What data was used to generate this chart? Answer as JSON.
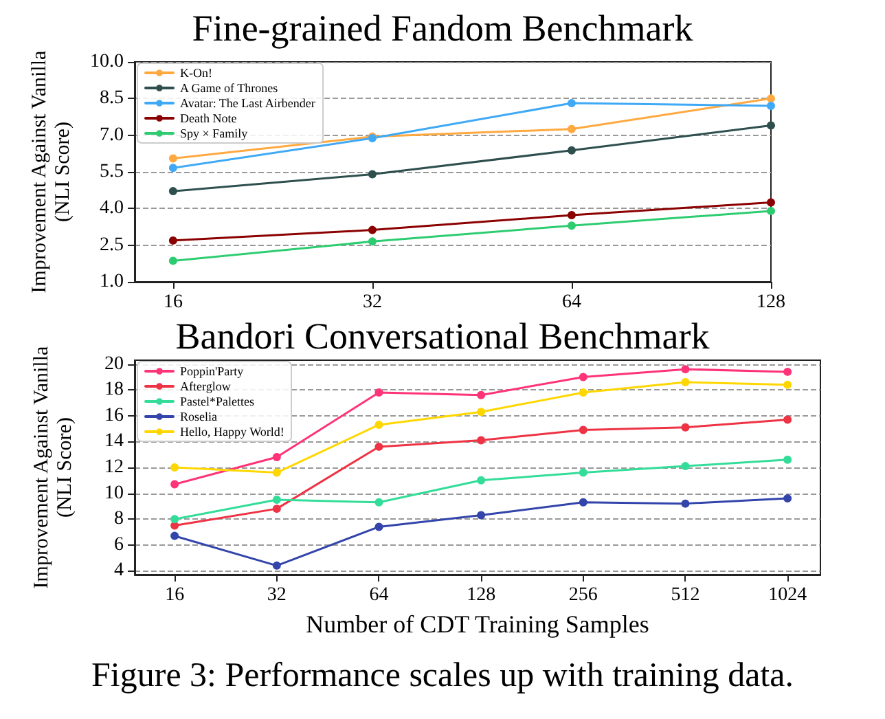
{
  "chart_data": [
    {
      "type": "line",
      "title": "Fine-grained Fandom Benchmark",
      "ylabel": "Improvement Against Vanilla\n(NLI Score)",
      "x": [
        16,
        32,
        64,
        128
      ],
      "log": "x",
      "xlim": [
        14,
        128
      ],
      "xticks": [
        16,
        32,
        64,
        128
      ],
      "ylim": [
        1,
        10
      ],
      "yticks": [
        {
          "value": 1,
          "label": "1.0"
        },
        {
          "value": 2.5,
          "label": "2.5"
        },
        {
          "value": 4,
          "label": "4.0"
        },
        {
          "value": 5.5,
          "label": "5.5"
        },
        {
          "value": 7,
          "label": "7.0"
        },
        {
          "value": 8.5,
          "label": "8.5"
        },
        {
          "value": 10,
          "label": "10.0"
        }
      ],
      "grid": "y",
      "legend": "top left",
      "marker": "circle",
      "line_style": "solid",
      "series": [
        {
          "name": "K-On!",
          "color": "#ffa940",
          "values": [
            6.05,
            6.94,
            7.25,
            8.5
          ]
        },
        {
          "name": "A Game of Thrones",
          "color": "#2f4f4f",
          "values": [
            4.71,
            5.4,
            6.38,
            7.4
          ]
        },
        {
          "name": "Avatar: The Last Airbender",
          "color": "#3fa9f5",
          "values": [
            5.66,
            6.88,
            8.31,
            8.2
          ]
        },
        {
          "name": "Death Note",
          "color": "#8b0000",
          "values": [
            2.69,
            3.12,
            3.73,
            4.25
          ]
        },
        {
          "name": "Spy × Family",
          "color": "#2ecc71",
          "values": [
            1.86,
            2.65,
            3.3,
            3.9
          ]
        }
      ]
    },
    {
      "type": "line",
      "title": "Bandori Conversational Benchmark",
      "xlabel": "Number of CDT Training Samples",
      "ylabel": "Improvement Against Vanilla\n(NLI Score)",
      "x": [
        16,
        32,
        64,
        128,
        256,
        512,
        1024
      ],
      "log": "x",
      "xlim": [
        12.2,
        1280
      ],
      "xticks": [
        16,
        32,
        64,
        128,
        256,
        512,
        1024
      ],
      "ylim": [
        3.7,
        20.3
      ],
      "yticks": [
        4,
        6,
        8,
        10,
        12,
        14,
        16,
        18,
        20
      ],
      "grid": "y",
      "legend": "top left",
      "marker": "circle",
      "line_style": "solid",
      "annotations": [
        "Figure 3: Performance scales up with training data."
      ],
      "series": [
        {
          "name": "Poppin'Party",
          "color": "#ff3377",
          "values": [
            10.7,
            12.8,
            17.8,
            17.6,
            19.0,
            19.6,
            19.4
          ]
        },
        {
          "name": "Afterglow",
          "color": "#ee3344",
          "values": [
            7.5,
            8.8,
            13.6,
            14.1,
            14.9,
            15.1,
            15.7
          ]
        },
        {
          "name": "Pastel*Palettes",
          "color": "#33dd99",
          "values": [
            8.0,
            9.5,
            9.3,
            11.0,
            11.6,
            12.1,
            12.6
          ]
        },
        {
          "name": "Roselia",
          "color": "#3344aa",
          "values": [
            6.7,
            4.4,
            7.4,
            8.3,
            9.3,
            9.2,
            9.6
          ]
        },
        {
          "name": "Hello, Happy World!",
          "color": "#ffd700",
          "values": [
            12.0,
            11.6,
            15.3,
            16.3,
            17.8,
            18.6,
            18.4
          ]
        }
      ]
    }
  ]
}
